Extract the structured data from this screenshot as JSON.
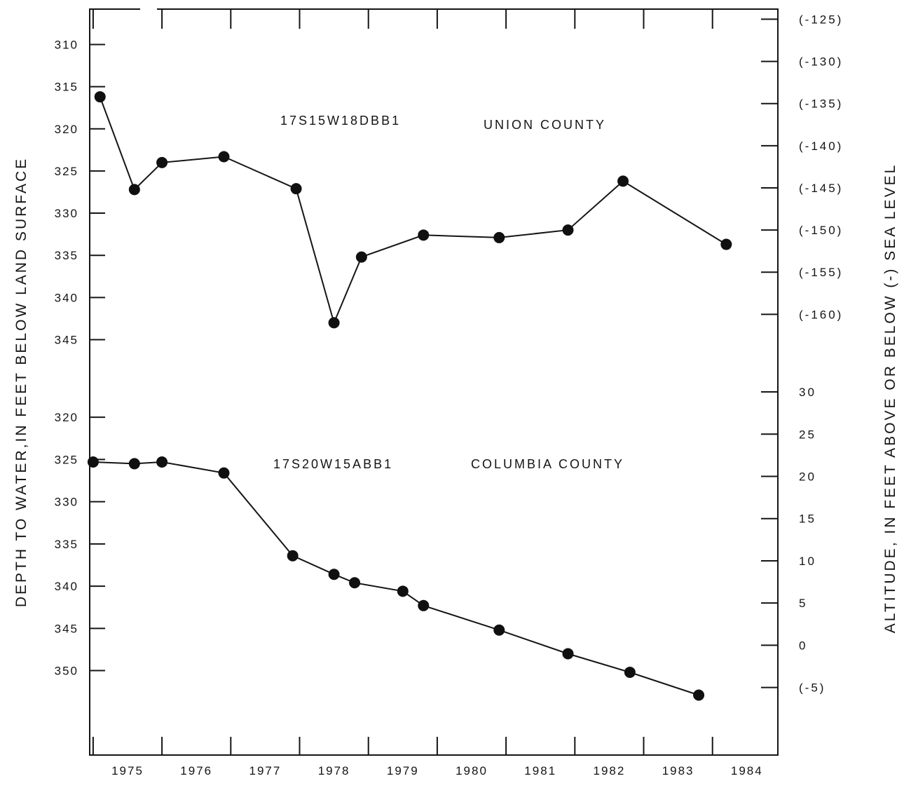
{
  "chart_data": {
    "type": "line",
    "xlabel": "",
    "ylabel_left": "DEPTH TO WATER,IN FEET BELOW LAND SURFACE",
    "ylabel_right": "ALTITUDE, IN FEET ABOVE OR BELOW (-) SEA LEVEL",
    "x_tick_labels": [
      "1975",
      "1976",
      "1977",
      "1978",
      "1979",
      "1980",
      "1981",
      "1982",
      "1983",
      "1984"
    ],
    "x_range": [
      1974.95,
      1984.95
    ],
    "grid": false,
    "panels": [
      {
        "id": "upper",
        "series_label": "17S15W18DBB1",
        "county_label": "UNION COUNTY",
        "left_ticks": [
          "310",
          "315",
          "320",
          "325",
          "330",
          "335",
          "340",
          "345"
        ],
        "right_ticks": [
          "(-125)",
          "(-130)",
          "(-135)",
          "(-140)",
          "(-145)",
          "(-150)",
          "(-155)",
          "(-160)"
        ],
        "depth_range": [
          305.8,
          350.2
        ],
        "points": [
          {
            "x": 1975.1,
            "y": 316.2
          },
          {
            "x": 1975.6,
            "y": 327.2
          },
          {
            "x": 1976.0,
            "y": 324.0
          },
          {
            "x": 1976.9,
            "y": 323.3
          },
          {
            "x": 1977.95,
            "y": 327.1
          },
          {
            "x": 1978.5,
            "y": 343.0
          },
          {
            "x": 1978.9,
            "y": 335.2
          },
          {
            "x": 1979.8,
            "y": 332.6
          },
          {
            "x": 1980.9,
            "y": 332.9
          },
          {
            "x": 1981.9,
            "y": 332.0
          },
          {
            "x": 1982.7,
            "y": 326.2
          },
          {
            "x": 1984.2,
            "y": 333.7
          }
        ]
      },
      {
        "id": "lower",
        "series_label": "17S20W15ABB1",
        "county_label": "COLUMBIA COUNTY",
        "left_ticks": [
          "320",
          "325",
          "330",
          "335",
          "340",
          "345",
          "350"
        ],
        "right_ticks": [
          "30",
          "25",
          "20",
          "15",
          "10",
          "5",
          "0",
          "(-5)"
        ],
        "depth_range": [
          316.0,
          360.0
        ],
        "points": [
          {
            "x": 1975.0,
            "y": 325.3
          },
          {
            "x": 1975.6,
            "y": 325.5
          },
          {
            "x": 1976.0,
            "y": 325.3
          },
          {
            "x": 1976.9,
            "y": 326.6
          },
          {
            "x": 1977.9,
            "y": 336.4
          },
          {
            "x": 1978.5,
            "y": 338.6
          },
          {
            "x": 1978.8,
            "y": 339.6
          },
          {
            "x": 1979.5,
            "y": 340.6
          },
          {
            "x": 1979.8,
            "y": 342.3
          },
          {
            "x": 1980.9,
            "y": 345.2
          },
          {
            "x": 1981.9,
            "y": 348.0
          },
          {
            "x": 1982.8,
            "y": 350.2
          },
          {
            "x": 1983.8,
            "y": 352.9
          }
        ]
      }
    ]
  }
}
